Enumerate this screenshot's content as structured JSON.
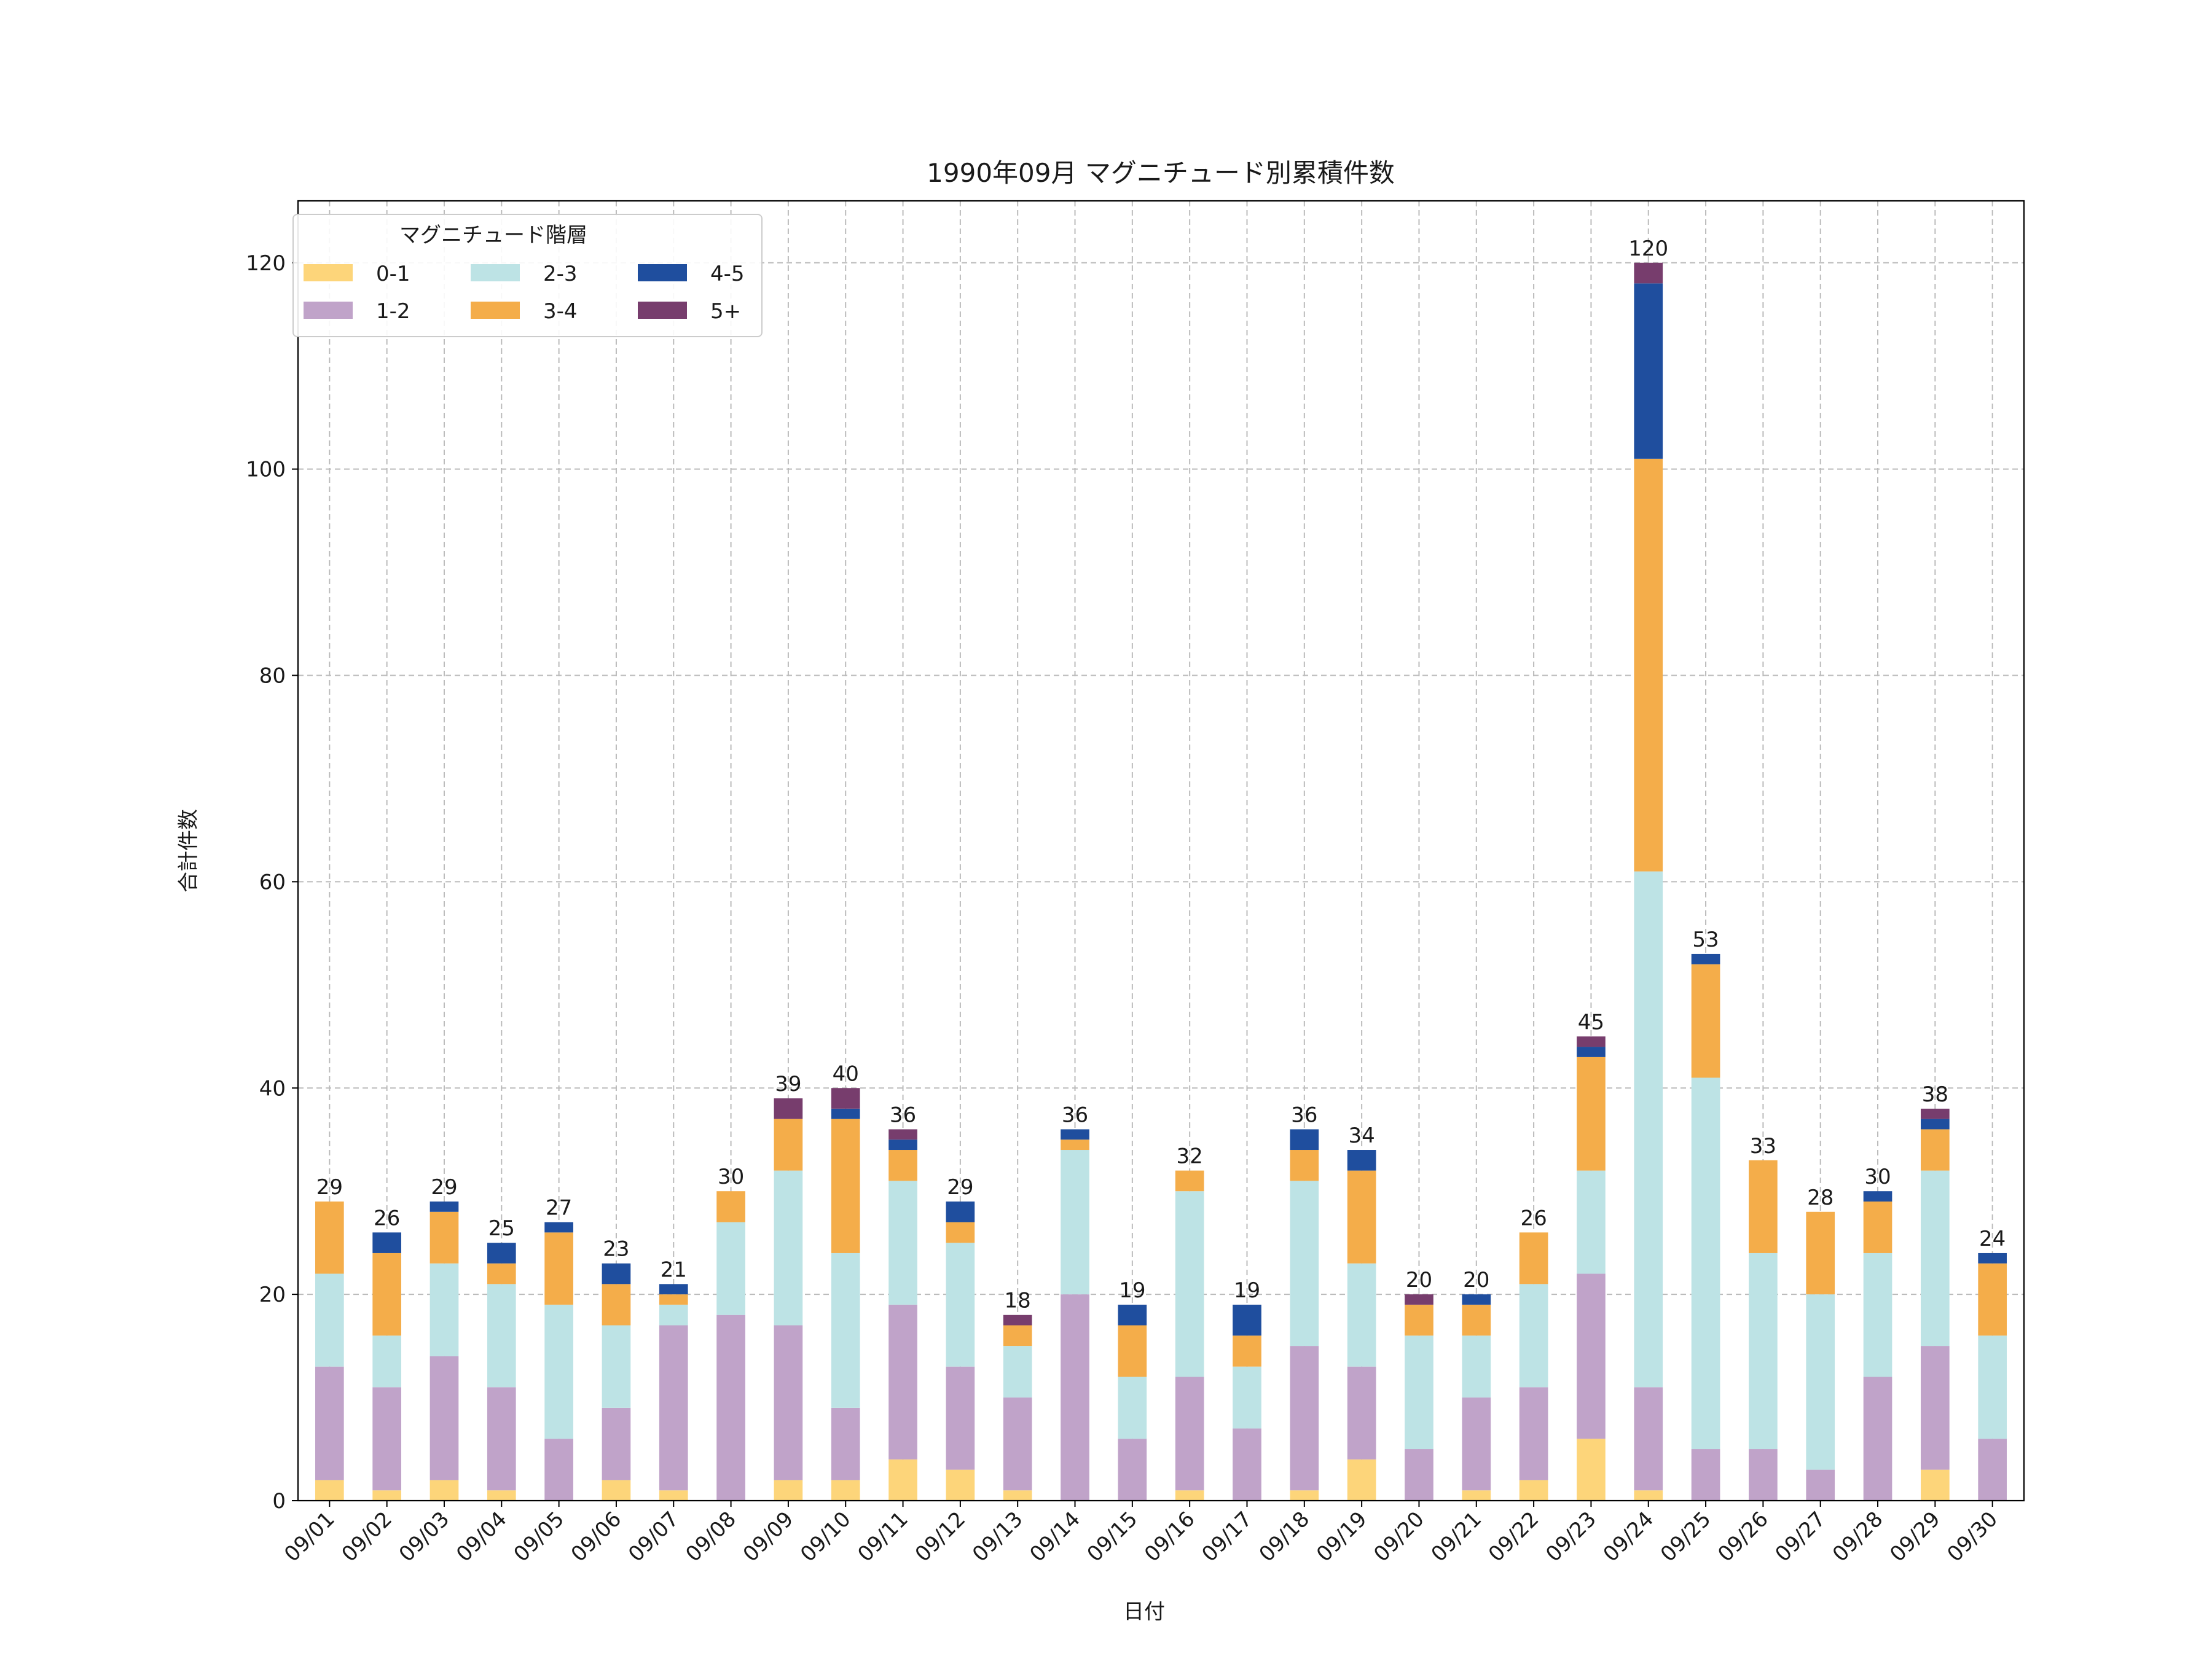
{
  "chart_data": {
    "type": "bar",
    "stacked": true,
    "title": "1990年09月 マグニチュード別累積件数",
    "xlabel": "日付",
    "ylabel": "合計件数",
    "ylim": [
      0,
      126
    ],
    "yticks": [
      0,
      20,
      40,
      60,
      80,
      100,
      120
    ],
    "grid": true,
    "legend": {
      "title": "マグニチュード階層",
      "placement": "top-left",
      "columns": 3
    },
    "categories": [
      "09/01",
      "09/02",
      "09/03",
      "09/04",
      "09/05",
      "09/06",
      "09/07",
      "09/08",
      "09/09",
      "09/10",
      "09/11",
      "09/12",
      "09/13",
      "09/14",
      "09/15",
      "09/16",
      "09/17",
      "09/18",
      "09/19",
      "09/20",
      "09/21",
      "09/22",
      "09/23",
      "09/24",
      "09/25",
      "09/26",
      "09/27",
      "09/28",
      "09/29",
      "09/30"
    ],
    "series": [
      {
        "name": "0-1",
        "color": "#fdd57a",
        "values": [
          2,
          1,
          2,
          1,
          0,
          2,
          1,
          0,
          2,
          2,
          4,
          3,
          1,
          0,
          0,
          1,
          0,
          1,
          4,
          0,
          1,
          2,
          6,
          1,
          0,
          0,
          0,
          0,
          3,
          0
        ]
      },
      {
        "name": "1-2",
        "color": "#c0a3c9",
        "values": [
          11,
          10,
          12,
          10,
          6,
          7,
          16,
          18,
          15,
          7,
          15,
          10,
          9,
          20,
          6,
          11,
          7,
          14,
          9,
          5,
          9,
          9,
          16,
          10,
          5,
          5,
          3,
          12,
          12,
          6
        ]
      },
      {
        "name": "2-3",
        "color": "#bde3e5",
        "values": [
          9,
          5,
          9,
          10,
          13,
          8,
          2,
          9,
          15,
          15,
          12,
          12,
          5,
          14,
          6,
          18,
          6,
          16,
          10,
          11,
          6,
          10,
          10,
          50,
          36,
          19,
          17,
          12,
          17,
          10
        ]
      },
      {
        "name": "3-4",
        "color": "#f4ad4a",
        "values": [
          7,
          8,
          5,
          2,
          7,
          4,
          1,
          3,
          5,
          13,
          3,
          2,
          2,
          1,
          5,
          2,
          3,
          3,
          9,
          3,
          3,
          5,
          11,
          40,
          11,
          9,
          8,
          5,
          4,
          7
        ]
      },
      {
        "name": "4-5",
        "color": "#1f4e9e",
        "values": [
          0,
          2,
          1,
          2,
          1,
          2,
          1,
          0,
          0,
          1,
          1,
          2,
          0,
          1,
          2,
          0,
          3,
          2,
          2,
          0,
          1,
          0,
          1,
          17,
          1,
          0,
          0,
          1,
          1,
          1
        ]
      },
      {
        "name": "5+",
        "color": "#773d6d",
        "values": [
          0,
          0,
          0,
          0,
          0,
          0,
          0,
          0,
          2,
          2,
          1,
          0,
          1,
          0,
          0,
          0,
          0,
          0,
          0,
          1,
          0,
          0,
          1,
          2,
          0,
          0,
          0,
          0,
          1,
          0
        ]
      }
    ],
    "totals": [
      29,
      26,
      29,
      25,
      27,
      23,
      21,
      30,
      39,
      40,
      36,
      29,
      18,
      36,
      19,
      32,
      19,
      36,
      34,
      20,
      20,
      26,
      45,
      120,
      53,
      33,
      28,
      30,
      38,
      24
    ]
  }
}
